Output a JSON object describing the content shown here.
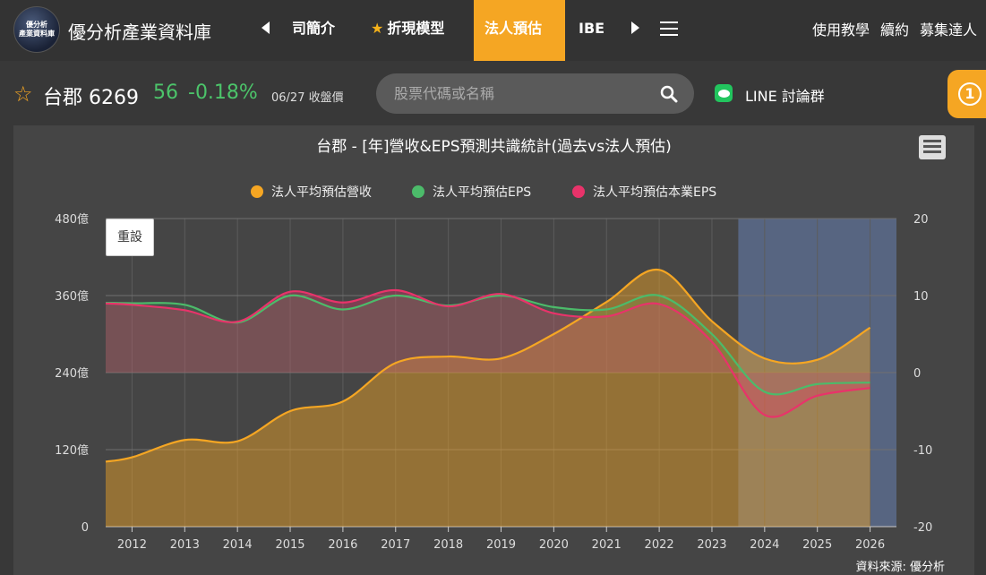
{
  "nav": {
    "logo_lines": [
      "優分析",
      "產業資料庫"
    ],
    "brand": "優分析產業資料庫",
    "items": [
      {
        "label": "司簡介"
      },
      {
        "label": "折現模型"
      },
      {
        "label": "法人預估"
      },
      {
        "label": "IBE"
      }
    ],
    "right_links": [
      "使用教學",
      "續約",
      "募集達人"
    ]
  },
  "stock": {
    "name": "台郡 6269",
    "price": "56",
    "change": "-0.18%",
    "date": "06/27 收盤價"
  },
  "search": {
    "placeholder": "股票代碼或名稱"
  },
  "line_group": {
    "label": "LINE 討論群"
  },
  "notification": {
    "count": "1"
  },
  "chart": {
    "reset_label": "重設",
    "source": "資料來源: 優分析"
  },
  "colors": {
    "revenue": "#f5a623",
    "eps": "#4cbb6a",
    "core_eps": "#e8336a",
    "forecast_band": "#5b6b8c",
    "accent": "#f5a623"
  },
  "chart_data": {
    "type": "area",
    "title": "台郡 - [年]營收&EPS預測共識統計(過去vs法人預估)",
    "categories": [
      "2012",
      "2013",
      "2014",
      "2015",
      "2016",
      "2017",
      "2018",
      "2019",
      "2020",
      "2021",
      "2022",
      "2023",
      "2024",
      "2025",
      "2026"
    ],
    "y_left": {
      "ticks": [
        "0",
        "120億",
        "240億",
        "360億",
        "480億"
      ],
      "range": [
        0,
        480
      ],
      "unit": "億"
    },
    "y_right": {
      "ticks": [
        "-20",
        "-10",
        "0",
        "10",
        "20"
      ],
      "range": [
        -20,
        20
      ]
    },
    "forecast_region": [
      "2024",
      "2026"
    ],
    "series": [
      {
        "name": "法人平均預估營收",
        "axis": "left",
        "values": [
          108,
          135,
          133,
          180,
          195,
          255,
          265,
          262,
          300,
          350,
          400,
          320,
          262,
          260,
          310
        ]
      },
      {
        "name": "法人平均預估EPS",
        "axis": "right",
        "values": [
          9.0,
          8.8,
          6.5,
          10.0,
          8.2,
          10.0,
          8.7,
          10.0,
          8.5,
          8.2,
          10.0,
          5.0,
          -2.5,
          -1.5,
          -1.3
        ]
      },
      {
        "name": "法人平均預估本業EPS",
        "axis": "right",
        "values": [
          8.8,
          8.1,
          6.6,
          10.5,
          9.1,
          10.7,
          8.6,
          10.2,
          7.7,
          7.3,
          8.9,
          4.0,
          -5.5,
          -3.0,
          -2.0
        ]
      }
    ]
  }
}
